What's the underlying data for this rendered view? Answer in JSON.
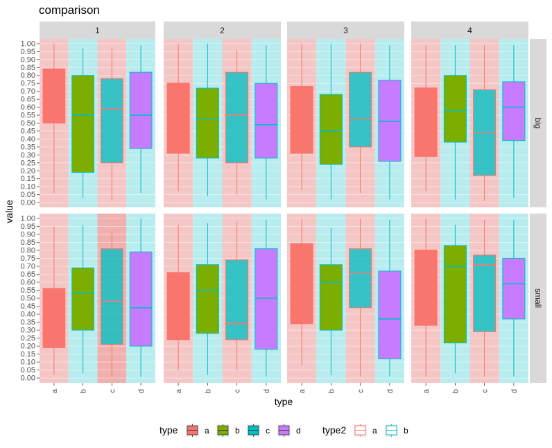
{
  "chart_data": {
    "type": "boxplot",
    "title": "comparison",
    "xlabel": "type",
    "ylabel": "value",
    "ylim": [
      -0.03,
      1.03
    ],
    "y_ticks": [
      "0.00",
      "0.05",
      "0.10",
      "0.15",
      "0.20",
      "0.25",
      "0.30",
      "0.35",
      "0.40",
      "0.45",
      "0.50",
      "0.55",
      "0.60",
      "0.65",
      "0.70",
      "0.75",
      "0.80",
      "0.85",
      "0.90",
      "0.95",
      "1.00"
    ],
    "categories": [
      "a",
      "b",
      "c",
      "d"
    ],
    "facet_cols": [
      "1",
      "2",
      "3",
      "4"
    ],
    "facet_rows": [
      "big",
      "small"
    ],
    "fill_colors": {
      "a": "#F8766D",
      "b": "#7CAE00",
      "c": "#00BFC4",
      "d": "#C77CFF"
    },
    "type2_colors": {
      "a": "#F8766D",
      "b": "#00BFC4"
    },
    "legend": {
      "type_title": "type",
      "type_items": [
        "a",
        "b",
        "c",
        "d"
      ],
      "type2_title": "type2",
      "type2_items": [
        "a",
        "b"
      ]
    },
    "panels": [
      {
        "row": "big",
        "col": "1",
        "bands": [
          "a",
          "b",
          "a",
          "b"
        ],
        "boxes": [
          {
            "cat": "a",
            "type2": "a",
            "min": 0.06,
            "q1": 0.5,
            "median": 0.84,
            "q3": 0.84,
            "max": 1.0
          },
          {
            "cat": "b",
            "type2": "b",
            "min": 0.03,
            "q1": 0.19,
            "median": 0.55,
            "q3": 0.8,
            "max": 0.97
          },
          {
            "cat": "c",
            "type2": "a",
            "min": 0.01,
            "q1": 0.25,
            "median": 0.59,
            "q3": 0.78,
            "max": 0.97
          },
          {
            "cat": "d",
            "type2": "b",
            "min": 0.06,
            "q1": 0.34,
            "median": 0.55,
            "q3": 0.82,
            "max": 0.99
          }
        ]
      },
      {
        "row": "big",
        "col": "2",
        "bands": [
          "a",
          "b",
          "a",
          "b"
        ],
        "boxes": [
          {
            "cat": "a",
            "type2": "a",
            "min": 0.07,
            "q1": 0.31,
            "median": 0.75,
            "q3": 0.75,
            "max": 1.0
          },
          {
            "cat": "b",
            "type2": "b",
            "min": 0.04,
            "q1": 0.28,
            "median": 0.53,
            "q3": 0.72,
            "max": 1.0
          },
          {
            "cat": "c",
            "type2": "a",
            "min": 0.05,
            "q1": 0.25,
            "median": 0.55,
            "q3": 0.82,
            "max": 0.96
          },
          {
            "cat": "d",
            "type2": "b",
            "min": 0.02,
            "q1": 0.28,
            "median": 0.49,
            "q3": 0.75,
            "max": 0.99
          }
        ]
      },
      {
        "row": "big",
        "col": "3",
        "bands": [
          "a",
          "b",
          "a",
          "b"
        ],
        "boxes": [
          {
            "cat": "a",
            "type2": "a",
            "min": 0.08,
            "q1": 0.31,
            "median": 0.73,
            "q3": 0.73,
            "max": 1.0
          },
          {
            "cat": "b",
            "type2": "b",
            "min": 0.02,
            "q1": 0.24,
            "median": 0.45,
            "q3": 0.68,
            "max": 1.0
          },
          {
            "cat": "c",
            "type2": "a",
            "min": 0.06,
            "q1": 0.35,
            "median": 0.53,
            "q3": 0.82,
            "max": 1.0
          },
          {
            "cat": "d",
            "type2": "b",
            "min": 0.02,
            "q1": 0.26,
            "median": 0.51,
            "q3": 0.77,
            "max": 0.99
          }
        ]
      },
      {
        "row": "big",
        "col": "4",
        "bands": [
          "a",
          "b",
          "a",
          "b"
        ],
        "boxes": [
          {
            "cat": "a",
            "type2": "a",
            "min": 0.07,
            "q1": 0.29,
            "median": 0.72,
            "q3": 0.72,
            "max": 0.99
          },
          {
            "cat": "b",
            "type2": "b",
            "min": 0.02,
            "q1": 0.38,
            "median": 0.58,
            "q3": 0.8,
            "max": 0.99
          },
          {
            "cat": "c",
            "type2": "a",
            "min": 0.01,
            "q1": 0.17,
            "median": 0.44,
            "q3": 0.71,
            "max": 0.99
          },
          {
            "cat": "d",
            "type2": "b",
            "min": 0.03,
            "q1": 0.39,
            "median": 0.6,
            "q3": 0.76,
            "max": 0.99
          }
        ]
      },
      {
        "row": "small",
        "col": "1",
        "bands": [
          "a",
          "b",
          "a",
          "b"
        ],
        "boxes": [
          {
            "cat": "a",
            "type2": "a",
            "min": 0.02,
            "q1": 0.19,
            "median": 0.56,
            "q3": 0.56,
            "max": 0.95
          },
          {
            "cat": "b",
            "type2": "b",
            "min": 0.03,
            "q1": 0.3,
            "median": 0.53,
            "q3": 0.69,
            "max": 0.96
          },
          {
            "cat": "c",
            "type2": "a",
            "min": 0.01,
            "q1": 0.21,
            "median": 0.48,
            "q3": 0.81,
            "max": 0.92
          },
          {
            "cat": "d",
            "type2": "b",
            "min": 0.01,
            "q1": 0.2,
            "median": 0.44,
            "q3": 0.79,
            "max": 1.0
          }
        ]
      },
      {
        "row": "small",
        "col": "2",
        "bands": [
          "a",
          "b",
          "a",
          "b"
        ],
        "boxes": [
          {
            "cat": "a",
            "type2": "a",
            "min": 0.05,
            "q1": 0.24,
            "median": 0.66,
            "q3": 0.66,
            "max": 0.96
          },
          {
            "cat": "b",
            "type2": "b",
            "min": 0.02,
            "q1": 0.28,
            "median": 0.55,
            "q3": 0.71,
            "max": 0.97
          },
          {
            "cat": "c",
            "type2": "a",
            "min": 0.05,
            "q1": 0.24,
            "median": 0.34,
            "q3": 0.74,
            "max": 0.98
          },
          {
            "cat": "d",
            "type2": "b",
            "min": 0.01,
            "q1": 0.18,
            "median": 0.5,
            "q3": 0.81,
            "max": 0.99
          }
        ]
      },
      {
        "row": "small",
        "col": "3",
        "bands": [
          "a",
          "b",
          "a",
          "b"
        ],
        "boxes": [
          {
            "cat": "a",
            "type2": "a",
            "min": 0.08,
            "q1": 0.34,
            "median": 0.84,
            "q3": 0.84,
            "max": 1.0
          },
          {
            "cat": "b",
            "type2": "b",
            "min": 0.02,
            "q1": 0.3,
            "median": 0.6,
            "q3": 0.71,
            "max": 0.94
          },
          {
            "cat": "c",
            "type2": "a",
            "min": 0.01,
            "q1": 0.44,
            "median": 0.66,
            "q3": 0.81,
            "max": 1.0
          },
          {
            "cat": "d",
            "type2": "b",
            "min": 0.01,
            "q1": 0.12,
            "median": 0.37,
            "q3": 0.67,
            "max": 0.99
          }
        ]
      },
      {
        "row": "small",
        "col": "4",
        "bands": [
          "a",
          "b",
          "a",
          "b"
        ],
        "boxes": [
          {
            "cat": "a",
            "type2": "a",
            "min": 0.01,
            "q1": 0.33,
            "median": 0.8,
            "q3": 0.8,
            "max": 1.0
          },
          {
            "cat": "b",
            "type2": "b",
            "min": 0.03,
            "q1": 0.22,
            "median": 0.7,
            "q3": 0.83,
            "max": 0.96
          },
          {
            "cat": "c",
            "type2": "a",
            "min": 0.01,
            "q1": 0.29,
            "median": 0.71,
            "q3": 0.77,
            "max": 0.99
          },
          {
            "cat": "d",
            "type2": "b",
            "min": 0.01,
            "q1": 0.37,
            "median": 0.59,
            "q3": 0.75,
            "max": 0.99
          }
        ]
      }
    ]
  }
}
